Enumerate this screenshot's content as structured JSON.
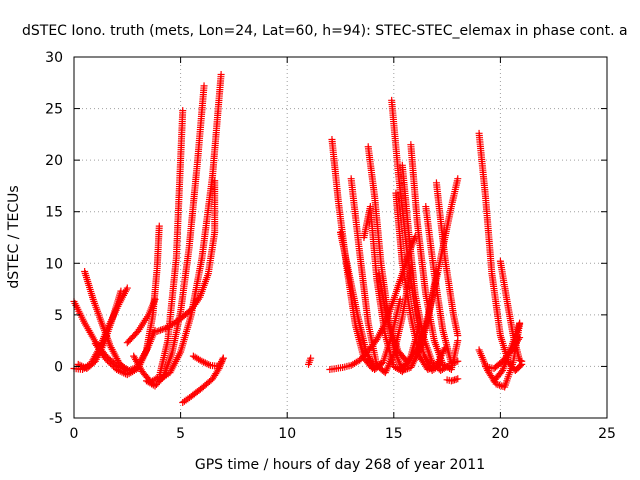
{
  "chart_data": {
    "type": "scatter",
    "title": "dSTEC Iono. truth (mets, Lon=24, Lat=60, h=94): STEC-STEC_elemax in phase cont. a",
    "xlabel": "GPS time / hours of day 268 of year 2011",
    "ylabel": "dSTEC  / TECUs",
    "xlim": [
      0,
      25
    ],
    "ylim": [
      -5,
      30
    ],
    "x_ticks": [
      0,
      5,
      10,
      15,
      20,
      25
    ],
    "y_ticks": [
      -5,
      0,
      5,
      10,
      15,
      20,
      25,
      30
    ],
    "x_tick_labels": [
      "0",
      "5",
      "10",
      "15",
      "20",
      "25"
    ],
    "y_tick_labels": [
      "-5",
      "0",
      "5",
      "10",
      "15",
      "20",
      "25",
      "30"
    ],
    "grid": true,
    "marker": "+",
    "color": "#ff0000",
    "series": [
      {
        "x": [
          0.0,
          0.5,
          1.0,
          1.5,
          2.0,
          2.5
        ],
        "y": [
          6.3,
          4.2,
          2.4,
          1.0,
          0.1,
          -0.4
        ]
      },
      {
        "x": [
          0.0,
          0.4,
          0.8,
          1.2,
          1.6,
          2.1,
          2.5
        ],
        "y": [
          -0.2,
          -0.3,
          0.3,
          1.8,
          3.8,
          6.0,
          7.6
        ]
      },
      {
        "x": [
          0.5,
          0.9,
          1.3,
          1.7,
          2.1,
          2.4
        ],
        "y": [
          9.2,
          6.5,
          4.2,
          2.0,
          0.4,
          -0.3
        ]
      },
      {
        "x": [
          0.2,
          0.6,
          1.0,
          1.4,
          1.8,
          2.2
        ],
        "y": [
          0.2,
          -0.2,
          0.5,
          2.2,
          4.6,
          7.3
        ]
      },
      {
        "x": [
          1.0,
          1.5,
          2.0,
          2.5,
          3.0,
          3.4,
          3.8
        ],
        "y": [
          2.2,
          0.7,
          -0.3,
          -0.8,
          -0.2,
          1.5,
          3.5
        ]
      },
      {
        "x": [
          2.5,
          3.0,
          3.5,
          3.8
        ],
        "y": [
          2.3,
          3.4,
          5.0,
          6.5
        ]
      },
      {
        "x": [
          2.2,
          2.6,
          3.0,
          3.4,
          3.7,
          3.9,
          4.0
        ],
        "y": [
          0.1,
          -0.4,
          0.0,
          1.6,
          5.0,
          9.5,
          13.6
        ]
      },
      {
        "x": [
          2.8,
          3.2,
          3.6,
          4.0,
          4.4,
          4.8,
          5.1
        ],
        "y": [
          1.0,
          -0.5,
          -1.5,
          -1.0,
          2.5,
          10.5,
          24.8
        ]
      },
      {
        "x": [
          3.4,
          3.8,
          4.2,
          4.6,
          5.0,
          5.4,
          5.8,
          6.1
        ],
        "y": [
          -1.4,
          -1.9,
          -1.0,
          1.3,
          5.3,
          11.5,
          20.0,
          27.2
        ]
      },
      {
        "x": [
          3.9,
          4.3,
          4.7,
          5.1,
          5.5,
          5.9,
          6.3,
          6.6,
          6.6
        ],
        "y": [
          3.4,
          3.7,
          4.2,
          4.8,
          5.5,
          6.7,
          9.0,
          13.0,
          18.0
        ]
      },
      {
        "x": [
          4.0,
          4.5,
          5.0,
          5.5,
          6.0,
          6.5,
          6.9
        ],
        "y": [
          -1.3,
          -0.6,
          1.4,
          5.0,
          10.5,
          18.5,
          28.3
        ]
      },
      {
        "x": [
          5.1,
          5.5,
          6.0,
          6.5,
          6.8,
          7.0
        ],
        "y": [
          -3.5,
          -2.9,
          -2.1,
          -1.2,
          -0.2,
          0.8
        ]
      },
      {
        "x": [
          5.6,
          6.0,
          6.4,
          6.8,
          7.0
        ],
        "y": [
          1.0,
          0.5,
          0.1,
          0.0,
          0.8
        ]
      },
      {
        "x": [
          11.0,
          11.1
        ],
        "y": [
          0.2,
          0.8
        ]
      },
      {
        "x": [
          12.0,
          12.3,
          12.6,
          13.0,
          13.4,
          13.8,
          14.2,
          14.6,
          15.0,
          15.4,
          15.8,
          16.0
        ],
        "y": [
          -0.3,
          -0.2,
          -0.1,
          0.1,
          0.6,
          1.5,
          2.6,
          4.2,
          6.5,
          9.0,
          11.5,
          12.6
        ]
      },
      {
        "x": [
          12.1,
          12.4,
          12.8,
          13.2,
          13.6,
          14.0,
          14.4
        ],
        "y": [
          22.0,
          16.0,
          9.5,
          4.0,
          0.8,
          -0.2,
          0.3
        ]
      },
      {
        "x": [
          12.5,
          12.9,
          13.3,
          13.7,
          14.1,
          14.5,
          14.9,
          15.3
        ],
        "y": [
          13.0,
          9.0,
          5.0,
          1.5,
          -0.3,
          0.4,
          3.0,
          6.5
        ]
      },
      {
        "x": [
          13.0,
          13.4,
          13.8,
          14.2,
          14.6,
          15.0,
          15.4,
          15.8
        ],
        "y": [
          18.2,
          11.0,
          4.2,
          0.1,
          -0.6,
          1.2,
          4.8,
          9.5
        ]
      },
      {
        "x": [
          13.6,
          13.9,
          14.2,
          14.6,
          15.0,
          15.4,
          15.8,
          16.2
        ],
        "y": [
          12.5,
          15.5,
          8.5,
          3.0,
          0.0,
          -0.5,
          1.0,
          4.0
        ]
      },
      {
        "x": [
          13.8,
          14.1,
          14.4,
          14.8,
          15.2,
          15.6
        ],
        "y": [
          21.3,
          16.5,
          10.0,
          4.0,
          1.5,
          0.5
        ]
      },
      {
        "x": [
          14.3,
          14.6,
          15.0,
          15.4,
          15.8,
          16.2,
          16.6,
          17.0
        ],
        "y": [
          9.0,
          5.5,
          1.8,
          -0.4,
          -0.1,
          1.5,
          4.5,
          9.0
        ]
      },
      {
        "x": [
          14.9,
          15.2,
          15.6,
          16.0,
          16.4,
          16.8,
          17.2
        ],
        "y": [
          25.8,
          19.0,
          11.5,
          5.5,
          1.2,
          -0.4,
          0.2
        ]
      },
      {
        "x": [
          15.1,
          15.4,
          15.8,
          16.2,
          16.6,
          17.0,
          17.4
        ],
        "y": [
          16.8,
          10.0,
          4.8,
          1.0,
          -0.3,
          0.1,
          1.8
        ]
      },
      {
        "x": [
          15.4,
          15.7,
          16.0,
          16.4,
          16.8,
          17.2,
          17.6
        ],
        "y": [
          19.5,
          13.0,
          7.0,
          2.8,
          0.4,
          -0.4,
          0.1
        ]
      },
      {
        "x": [
          15.3,
          15.7,
          16.1,
          16.5,
          16.9,
          17.3,
          17.7,
          18.0
        ],
        "y": [
          -0.2,
          0.4,
          1.8,
          4.0,
          7.5,
          11.5,
          15.5,
          18.2
        ]
      },
      {
        "x": [
          15.8,
          16.1,
          16.5,
          16.9,
          17.3,
          17.7,
          18.0
        ],
        "y": [
          21.5,
          14.0,
          7.0,
          2.5,
          0.2,
          -0.3,
          2.5
        ]
      },
      {
        "x": [
          16.5,
          16.9,
          17.3,
          17.7,
          18.0
        ],
        "y": [
          15.5,
          9.0,
          3.5,
          0.3,
          0.5
        ]
      },
      {
        "x": [
          17.0,
          17.4,
          17.8,
          18.0
        ],
        "y": [
          17.8,
          10.5,
          5.0,
          3.0
        ]
      },
      {
        "x": [
          17.5,
          17.7,
          18.0
        ],
        "y": [
          -1.3,
          -1.4,
          -1.2
        ]
      },
      {
        "x": [
          19.0,
          19.3,
          19.6,
          20.0,
          20.4,
          20.7,
          21.0
        ],
        "y": [
          22.6,
          16.5,
          9.0,
          3.0,
          0.3,
          -0.4,
          0.2
        ]
      },
      {
        "x": [
          19.3,
          19.7,
          20.1,
          20.5,
          20.9
        ],
        "y": [
          0.0,
          -0.2,
          0.5,
          1.5,
          2.8
        ]
      },
      {
        "x": [
          20.0,
          20.3,
          20.6,
          20.9,
          21.0
        ],
        "y": [
          10.2,
          6.5,
          3.0,
          0.6,
          0.5
        ]
      },
      {
        "x": [
          19.0,
          19.4,
          19.8,
          20.2,
          20.6,
          20.9
        ],
        "y": [
          1.6,
          -0.4,
          -1.7,
          -2.0,
          0.4,
          4.1
        ]
      },
      {
        "x": [
          19.7,
          20.1,
          20.5,
          20.9
        ],
        "y": [
          -1.4,
          -0.4,
          1.8,
          4.2
        ]
      }
    ]
  }
}
